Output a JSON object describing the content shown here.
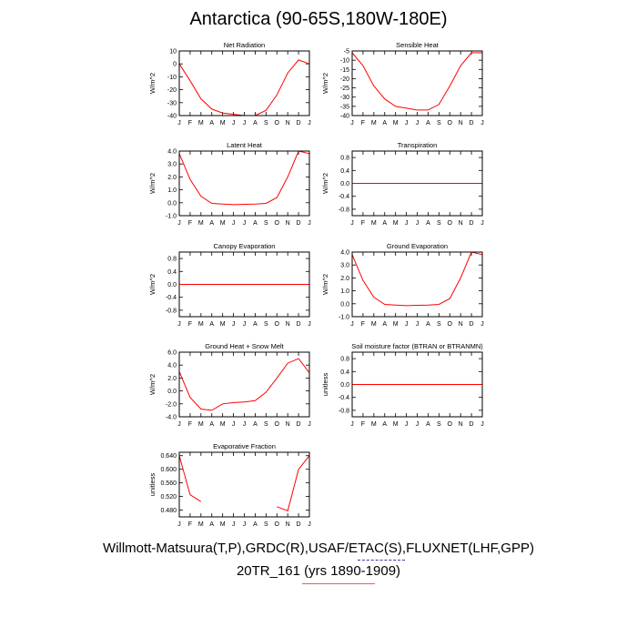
{
  "title": "Antarctica (90-65S,180W-180E)",
  "footer": {
    "line1": "Willmott-Matsuura(T,P),GRDC(R),USAF/ETAC(S),FLUXNET(LHF,GPP)",
    "line2": "20TR_161 (yrs 1890-1909)",
    "rule_colors": [
      "#3a3aa8",
      "#e06060"
    ]
  },
  "line_color": "#ff0000",
  "chart_data": [
    {
      "type": "line",
      "title": "Net Radiation",
      "ylabel": "W/m^2",
      "categories": [
        "J",
        "F",
        "M",
        "A",
        "M",
        "J",
        "J",
        "A",
        "S",
        "O",
        "N",
        "D",
        "J"
      ],
      "ylim": [
        -40,
        10
      ],
      "yticks": [
        10,
        0,
        -10,
        -20,
        -30,
        -40
      ],
      "ytick_labels": [
        "10",
        "0",
        "-10",
        "-20",
        "-30",
        "-40"
      ],
      "values": [
        0,
        -13,
        -27,
        -35,
        -38,
        -39,
        -40,
        -40,
        -36,
        -24,
        -7,
        3,
        0
      ]
    },
    {
      "type": "line",
      "title": "Sensible Heat",
      "ylabel": "W/m^2",
      "categories": [
        "J",
        "F",
        "M",
        "A",
        "M",
        "J",
        "J",
        "A",
        "S",
        "O",
        "N",
        "D",
        "J"
      ],
      "ylim": [
        -40,
        -5
      ],
      "yticks": [
        -5,
        -10,
        -15,
        -20,
        -25,
        -30,
        -35,
        -40
      ],
      "ytick_labels": [
        "-5",
        "-10",
        "-15",
        "-20",
        "-25",
        "-30",
        "-35",
        "-40"
      ],
      "values": [
        -6,
        -13,
        -24,
        -31,
        -35,
        -36,
        -37,
        -37,
        -34,
        -24,
        -13,
        -6,
        -6
      ]
    },
    {
      "type": "line",
      "title": "Latent Heat",
      "ylabel": "W/m^2",
      "categories": [
        "J",
        "F",
        "M",
        "A",
        "M",
        "J",
        "J",
        "A",
        "S",
        "O",
        "N",
        "D",
        "J"
      ],
      "ylim": [
        -1,
        4
      ],
      "yticks": [
        4,
        3,
        2,
        1,
        0,
        -1
      ],
      "ytick_labels": [
        "4.0",
        "3.0",
        "2.0",
        "1.0",
        "0.0",
        "-1.0"
      ],
      "values": [
        3.8,
        1.8,
        0.5,
        -0.05,
        -0.1,
        -0.15,
        -0.12,
        -0.1,
        -0.05,
        0.4,
        2.0,
        4.0,
        3.8
      ]
    },
    {
      "type": "line",
      "title": "Transpiration",
      "ylabel": "W/m^2",
      "categories": [
        "J",
        "F",
        "M",
        "A",
        "M",
        "J",
        "J",
        "A",
        "S",
        "O",
        "N",
        "D",
        "J"
      ],
      "ylim": [
        -1,
        1
      ],
      "yticks": [
        0.8,
        0.4,
        0,
        -0.4,
        -0.8
      ],
      "ytick_labels": [
        "0.8",
        "0.4",
        "0.0",
        "-0.4",
        "-0.8"
      ],
      "values": [
        0,
        0,
        0,
        0,
        0,
        0,
        0,
        0,
        0,
        0,
        0,
        0,
        0
      ]
    },
    {
      "type": "line",
      "title": "Canopy Evaporation",
      "ylabel": "W/m^2",
      "categories": [
        "J",
        "F",
        "M",
        "A",
        "M",
        "J",
        "J",
        "A",
        "S",
        "O",
        "N",
        "D",
        "J"
      ],
      "ylim": [
        -1,
        1
      ],
      "yticks": [
        0.8,
        0.4,
        0,
        -0.4,
        -0.8
      ],
      "ytick_labels": [
        "0.8",
        "0.4",
        "0.0",
        "-0.4",
        "-0.8"
      ],
      "values": [
        0,
        0,
        0,
        0,
        0,
        0,
        0,
        0,
        0,
        0,
        0,
        0,
        0
      ]
    },
    {
      "type": "line",
      "title": "Ground Evaporation",
      "ylabel": "W/m^2",
      "categories": [
        "J",
        "F",
        "M",
        "A",
        "M",
        "J",
        "J",
        "A",
        "S",
        "O",
        "N",
        "D",
        "J"
      ],
      "ylim": [
        -1,
        4
      ],
      "yticks": [
        4,
        3,
        2,
        1,
        0,
        -1
      ],
      "ytick_labels": [
        "4.0",
        "3.0",
        "2.0",
        "1.0",
        "0.0",
        "-1.0"
      ],
      "values": [
        3.8,
        1.8,
        0.5,
        -0.05,
        -0.1,
        -0.15,
        -0.12,
        -0.1,
        -0.05,
        0.4,
        2.0,
        4.0,
        3.8
      ]
    },
    {
      "type": "line",
      "title": "Ground Heat + Snow Melt",
      "ylabel": "W/m^2",
      "categories": [
        "J",
        "F",
        "M",
        "A",
        "M",
        "J",
        "J",
        "A",
        "S",
        "O",
        "N",
        "D",
        "J"
      ],
      "ylim": [
        -4,
        6
      ],
      "yticks": [
        6,
        4,
        2,
        0,
        -2,
        -4
      ],
      "ytick_labels": [
        "6.0",
        "4.0",
        "2.0",
        "0.0",
        "-2.0",
        "-4.0"
      ],
      "values": [
        3.0,
        -1.0,
        -2.8,
        -3.0,
        -2.0,
        -1.8,
        -1.7,
        -1.5,
        -0.2,
        2.0,
        4.3,
        5.0,
        2.8
      ]
    },
    {
      "type": "line",
      "title": "Soil moisture factor (BTRAN or BTRANMN)",
      "ylabel": "unitless",
      "categories": [
        "J",
        "F",
        "M",
        "A",
        "M",
        "J",
        "J",
        "A",
        "S",
        "O",
        "N",
        "D",
        "J"
      ],
      "ylim": [
        -1,
        1
      ],
      "yticks": [
        0.8,
        0.4,
        0,
        -0.4,
        -0.8
      ],
      "ytick_labels": [
        "0.8",
        "0.4",
        "0.0",
        "-0.4",
        "-0.8"
      ],
      "values": [
        0,
        0,
        0,
        0,
        0,
        0,
        0,
        0,
        0,
        0,
        0,
        0,
        0
      ]
    },
    {
      "type": "line",
      "title": "Evaporative Fraction",
      "ylabel": "unitless",
      "categories": [
        "J",
        "F",
        "M",
        "A",
        "M",
        "J",
        "J",
        "A",
        "S",
        "O",
        "N",
        "D",
        "J"
      ],
      "ylim": [
        0.46,
        0.65
      ],
      "yticks": [
        0.64,
        0.6,
        0.56,
        0.52,
        0.48
      ],
      "ytick_labels": [
        "0.640",
        "0.600",
        "0.560",
        "0.520",
        "0.480"
      ],
      "values": [
        0.64,
        0.525,
        0.505,
        null,
        null,
        null,
        null,
        null,
        null,
        0.49,
        0.478,
        0.6,
        0.64
      ]
    }
  ]
}
